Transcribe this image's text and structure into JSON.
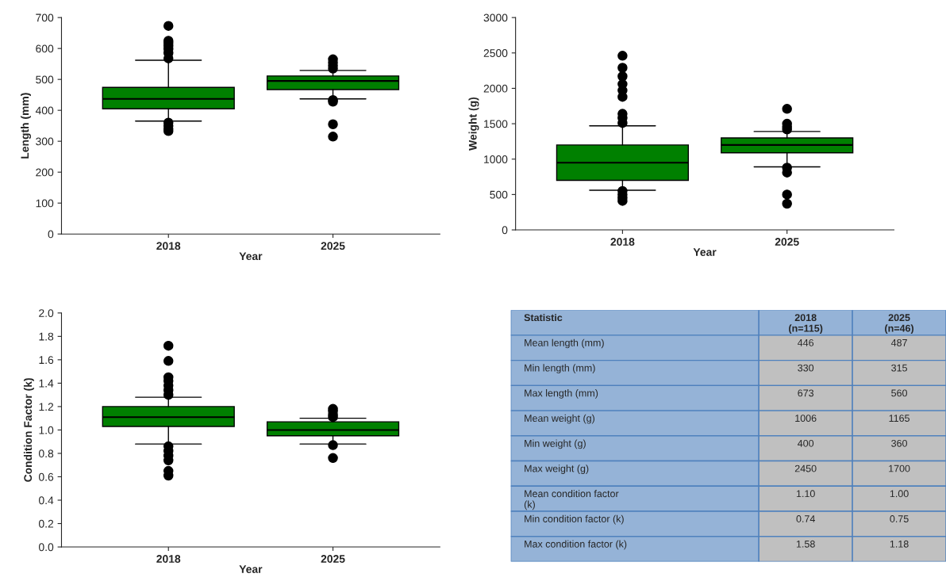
{
  "chart_data": [
    {
      "type": "box",
      "categories": [
        "2018",
        "2025"
      ],
      "xlabel": "Year",
      "ylabel": "Length (mm)",
      "color": "#008000",
      "ylim": [
        0,
        700
      ],
      "yticks": [
        0,
        100,
        200,
        300,
        400,
        500,
        600,
        700
      ],
      "boxes": [
        {
          "low": 365,
          "q1": 405,
          "median": 437,
          "q3": 474,
          "high": 562,
          "outliers": [
            673,
            625,
            618,
            608,
            598,
            585,
            568,
            360,
            350,
            340,
            333
          ]
        },
        {
          "low": 437,
          "q1": 467,
          "median": 495,
          "q3": 511,
          "high": 529,
          "outliers": [
            565,
            555,
            545,
            535,
            433,
            428,
            355,
            315
          ]
        }
      ]
    },
    {
      "type": "box",
      "categories": [
        "2018",
        "2025"
      ],
      "xlabel": "Year",
      "ylabel": "Weight (g)",
      "color": "#008000",
      "ylim": [
        0,
        3000
      ],
      "yticks": [
        0,
        500,
        1000,
        1500,
        2000,
        2500,
        3000
      ],
      "boxes": [
        {
          "low": 560,
          "q1": 700,
          "median": 950,
          "q3": 1200,
          "high": 1470,
          "outliers": [
            2460,
            2290,
            2170,
            2060,
            1970,
            1880,
            1640,
            1580,
            1510,
            550,
            500,
            450,
            410
          ]
        },
        {
          "low": 890,
          "q1": 1090,
          "median": 1200,
          "q3": 1300,
          "high": 1390,
          "outliers": [
            1710,
            1500,
            1460,
            1420,
            880,
            810,
            500,
            370
          ]
        }
      ]
    },
    {
      "type": "box",
      "categories": [
        "2018",
        "2025"
      ],
      "xlabel": "Year",
      "ylabel": "Condition Factor (k)",
      "color": "#008000",
      "ylim": [
        0,
        2
      ],
      "yticks": [
        {
          "value": 0,
          "label": "0.0"
        },
        {
          "value": 0.2,
          "label": "0.2"
        },
        {
          "value": 0.4,
          "label": "0.4"
        },
        {
          "value": 0.6,
          "label": "0.6"
        },
        {
          "value": 0.8,
          "label": "0.8"
        },
        {
          "value": 1.0,
          "label": "1.0"
        },
        {
          "value": 1.2,
          "label": "1.2"
        },
        {
          "value": 1.4,
          "label": "1.4"
        },
        {
          "value": 1.6,
          "label": "1.6"
        },
        {
          "value": 1.8,
          "label": "1.8"
        },
        {
          "value": 2.0,
          "label": "2.0"
        }
      ],
      "boxes": [
        {
          "low": 0.88,
          "q1": 1.03,
          "median": 1.11,
          "q3": 1.2,
          "high": 1.28,
          "outliers": [
            1.72,
            1.59,
            1.45,
            1.42,
            1.38,
            1.34,
            1.3,
            0.86,
            0.82,
            0.78,
            0.74,
            0.65,
            0.61
          ]
        },
        {
          "low": 0.88,
          "q1": 0.95,
          "median": 1.0,
          "q3": 1.07,
          "high": 1.1,
          "outliers": [
            1.18,
            1.16,
            1.13,
            1.11,
            0.87,
            0.76
          ]
        }
      ]
    },
    {
      "type": "other",
      "annotations": [
        "Statistic",
        "2018\n(n=115)",
        "2025\n(n=46)",
        "Mean length (mm)",
        "446",
        "487",
        "Min length (mm)",
        "330",
        "315",
        "Max length (mm)",
        "673",
        "560",
        "Mean weight (g)",
        "1006",
        "1165",
        "Min weight (g)",
        "400",
        "360",
        "Max weight (g)",
        "2450",
        "1700",
        "Mean condition factor\n(k)",
        "1.10",
        "1.00",
        "Min condition factor (k)",
        "0.74",
        "0.75",
        "Max condition factor (k)",
        "1.58",
        "1.18"
      ]
    }
  ]
}
